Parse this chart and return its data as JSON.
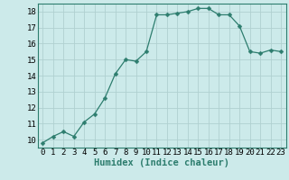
{
  "x": [
    0,
    1,
    2,
    3,
    4,
    5,
    6,
    7,
    8,
    9,
    10,
    11,
    12,
    13,
    14,
    15,
    16,
    17,
    18,
    19,
    20,
    21,
    22,
    23
  ],
  "y": [
    9.8,
    10.2,
    10.5,
    10.2,
    11.1,
    11.6,
    12.6,
    14.1,
    15.0,
    14.9,
    15.5,
    17.8,
    17.8,
    17.9,
    18.0,
    18.2,
    18.2,
    17.8,
    17.8,
    17.1,
    15.5,
    15.4,
    15.6,
    15.5
  ],
  "line_color": "#2d7d6e",
  "marker": "D",
  "marker_size": 2.5,
  "bg_color": "#cceaea",
  "grid_color": "#b0d0d0",
  "xlabel": "Humidex (Indice chaleur)",
  "ylim": [
    9.5,
    18.5
  ],
  "xlim": [
    -0.5,
    23.5
  ],
  "yticks": [
    10,
    11,
    12,
    13,
    14,
    15,
    16,
    17,
    18
  ],
  "xticks": [
    0,
    1,
    2,
    3,
    4,
    5,
    6,
    7,
    8,
    9,
    10,
    11,
    12,
    13,
    14,
    15,
    16,
    17,
    18,
    19,
    20,
    21,
    22,
    23
  ],
  "xlabel_fontsize": 7.5,
  "tick_fontsize": 6.5
}
